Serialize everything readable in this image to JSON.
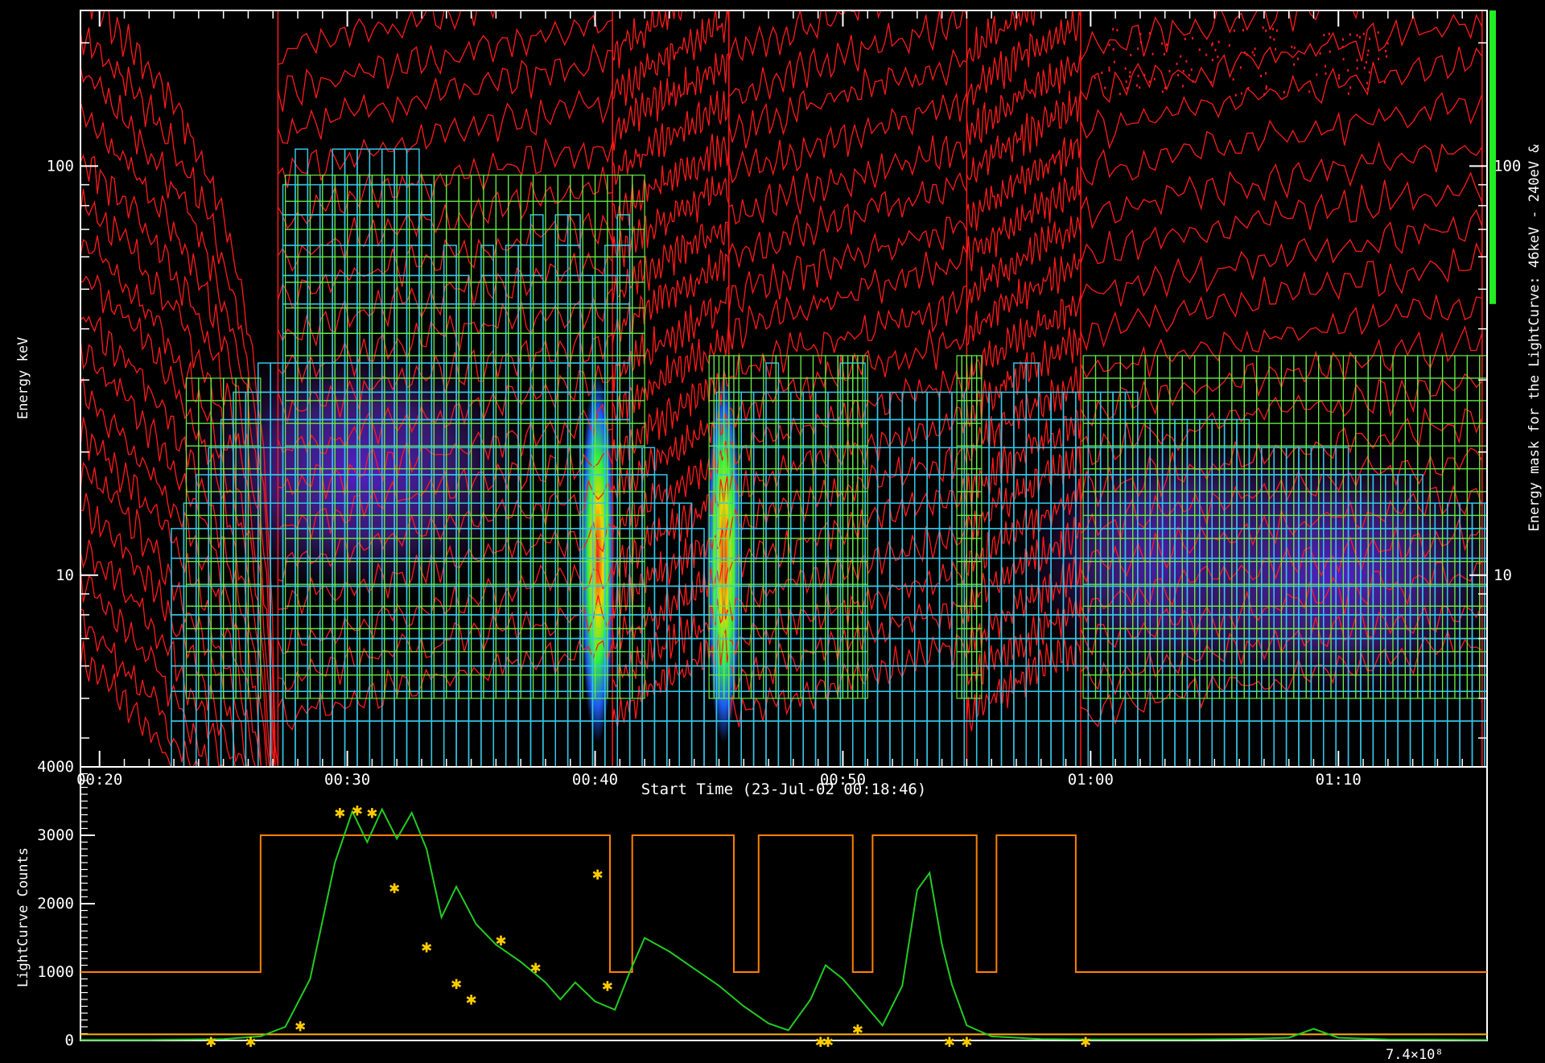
{
  "colors": {
    "contour": "#ff1a1a",
    "cyan_box": "#33c6e6",
    "green_grid": "#66ee44",
    "lc_line": "#22cc22",
    "mask_line": "#ff8000",
    "baseline": "#ffb000",
    "star": "#ffcc00",
    "energy_bar": "#22ee22"
  },
  "chart_data": [
    {
      "type": "heatmap",
      "title": "",
      "ylabel": "Energy keV",
      "right_label": "Energy mask for the LightCurve: 46keV - 240eV &",
      "xlabel": "Start Time (23-Jul-02 00:18:46)",
      "xlim_min": [
        19.23,
        76.0
      ],
      "ylim_keV": [
        3.4,
        240
      ],
      "y_scale": "log",
      "y_ticks_major": [
        10,
        100
      ],
      "x_ticks": [
        {
          "min": 20,
          "label": "00:20"
        },
        {
          "min": 30,
          "label": "00:30"
        },
        {
          "min": 40,
          "label": "00:40"
        },
        {
          "min": 50,
          "label": "00:50"
        },
        {
          "min": 60,
          "label": "01:00"
        },
        {
          "min": 70,
          "label": "01:10"
        }
      ],
      "energy_mask_keV": [
        46,
        240
      ],
      "intensity_peaks": [
        {
          "t": 30.5,
          "e": 18,
          "level": 0.55
        },
        {
          "t": 40.1,
          "e": 11,
          "level": 1.0
        },
        {
          "t": 45.2,
          "e": 11,
          "level": 0.7
        },
        {
          "t": 64,
          "e": 11,
          "level": 0.45
        },
        {
          "t": 70,
          "e": 10,
          "level": 0.35
        }
      ],
      "flare_intervals_min": [
        [
          23.5,
          26.5
        ],
        [
          27.5,
          42.0
        ],
        [
          44.6,
          45.8
        ],
        [
          45.8,
          50
        ],
        [
          49.8,
          51.0
        ],
        [
          54.6,
          55.6
        ],
        [
          59.7,
          76
        ]
      ]
    },
    {
      "type": "line",
      "ylabel": "LightCurve Counts",
      "ylim": [
        0,
        4000
      ],
      "y_ticks": [
        0,
        1000,
        2000,
        3000,
        4000
      ],
      "xlim_min": [
        19.23,
        76.0
      ],
      "corner_label": "7.4×10⁸",
      "series": [
        {
          "values_min_counts": [
            [
              19.23,
              10
            ],
            [
              22,
              10
            ],
            [
              25,
              20
            ],
            [
              26.5,
              60
            ],
            [
              27.5,
              200
            ],
            [
              28.5,
              900
            ],
            [
              29.5,
              2600
            ],
            [
              30.2,
              3350
            ],
            [
              30.8,
              2900
            ],
            [
              31.4,
              3380
            ],
            [
              32.0,
              2950
            ],
            [
              32.6,
              3330
            ],
            [
              33.2,
              2800
            ],
            [
              33.8,
              1800
            ],
            [
              34.4,
              2250
            ],
            [
              35.2,
              1700
            ],
            [
              36.0,
              1400
            ],
            [
              37.0,
              1150
            ],
            [
              38.0,
              850
            ],
            [
              38.6,
              600
            ],
            [
              39.2,
              850
            ],
            [
              40.0,
              570
            ],
            [
              40.8,
              450
            ],
            [
              41.4,
              1000
            ],
            [
              42.0,
              1500
            ],
            [
              43.0,
              1300
            ],
            [
              44.0,
              1050
            ],
            [
              45.0,
              800
            ],
            [
              46.0,
              500
            ],
            [
              47.0,
              250
            ],
            [
              47.8,
              150
            ],
            [
              48.7,
              600
            ],
            [
              49.3,
              1100
            ],
            [
              50.0,
              900
            ],
            [
              50.8,
              560
            ],
            [
              51.6,
              220
            ],
            [
              52.4,
              800
            ],
            [
              53.0,
              2200
            ],
            [
              53.5,
              2450
            ],
            [
              54.0,
              1400
            ],
            [
              54.4,
              820
            ],
            [
              55.0,
              220
            ],
            [
              56.0,
              60
            ],
            [
              58,
              20
            ],
            [
              60,
              15
            ],
            [
              64,
              15
            ],
            [
              66,
              20
            ],
            [
              68,
              40
            ],
            [
              69,
              170
            ],
            [
              70,
              40
            ],
            [
              72,
              15
            ],
            [
              76,
              10
            ]
          ]
        }
      ],
      "mask_step": {
        "low": 1000,
        "high": 3000,
        "high_intervals_min": [
          [
            26.5,
            40.6
          ],
          [
            41.5,
            45.6
          ],
          [
            46.6,
            50.4
          ],
          [
            51.2,
            55.4
          ],
          [
            56.2,
            59.4
          ]
        ]
      },
      "baseline_counts": 90,
      "peak_markers_min_counts": [
        [
          29.7,
          3350
        ],
        [
          30.4,
          3380
        ],
        [
          31.0,
          3350
        ],
        [
          31.9,
          2250
        ],
        [
          33.2,
          1380
        ],
        [
          34.4,
          850
        ],
        [
          35.0,
          620
        ],
        [
          36.2,
          1480
        ],
        [
          37.6,
          1080
        ],
        [
          40.1,
          2450
        ],
        [
          40.5,
          820
        ],
        [
          28.1,
          230
        ],
        [
          50.6,
          180
        ],
        [
          24.5,
          0
        ],
        [
          26.1,
          0
        ],
        [
          49.1,
          0
        ],
        [
          49.4,
          0
        ],
        [
          54.3,
          0
        ],
        [
          55.0,
          0
        ],
        [
          59.8,
          0
        ]
      ]
    }
  ]
}
